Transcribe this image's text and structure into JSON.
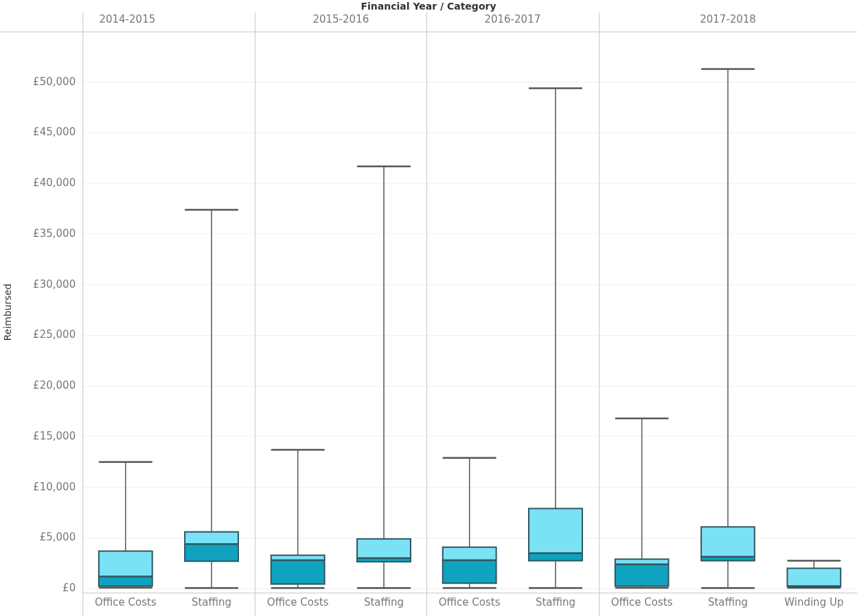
{
  "chart_data": [
    {
      "type": "box",
      "title": "2014-2015",
      "ylabel": "Reimbursed",
      "annotations": [
        "Financial Year / Category"
      ],
      "categories": [
        "Office Costs",
        "Staffing"
      ],
      "color": "#0fa3bf",
      "grid": "y",
      "ylim": [
        -400,
        55000
      ],
      "yticks": [
        {
          "value": 0,
          "label": "£0"
        },
        {
          "value": 5000,
          "label": "£5,000"
        },
        {
          "value": 10000,
          "label": "£10,000"
        },
        {
          "value": 15000,
          "label": "£15,000"
        },
        {
          "value": 20000,
          "label": "£20,000"
        },
        {
          "value": 25000,
          "label": "£25,000"
        },
        {
          "value": 30000,
          "label": "£30,000"
        },
        {
          "value": 35000,
          "label": "£35,000"
        },
        {
          "value": 40000,
          "label": "£40,000"
        },
        {
          "value": 45000,
          "label": "£45,000"
        },
        {
          "value": 50000,
          "label": "£50,000"
        }
      ],
      "boxes": [
        {
          "low": 100,
          "q1": 240,
          "median": 1200,
          "q3": 3700,
          "high": 12500
        },
        {
          "low": 50,
          "q1": 2700,
          "median": 4400,
          "q3": 5600,
          "high": 37400
        }
      ]
    },
    {
      "type": "box",
      "title": "2015-2016",
      "categories": [
        "Office Costs",
        "Staffing"
      ],
      "color": "#0fa3bf",
      "grid": "y",
      "tick_labels": "x",
      "ylim": [
        -400,
        55000
      ],
      "yticks": [
        0,
        5000,
        10000,
        15000,
        20000,
        25000,
        30000,
        35000,
        40000,
        45000,
        50000
      ],
      "boxes": [
        {
          "low": 50,
          "q1": 450,
          "median": 2800,
          "q3": 3300,
          "high": 13700
        },
        {
          "low": 50,
          "q1": 2650,
          "median": 3000,
          "q3": 4900,
          "high": 41700
        }
      ]
    },
    {
      "type": "box",
      "title": "2016-2017",
      "categories": [
        "Office Costs",
        "Staffing"
      ],
      "color": "#0fa3bf",
      "grid": "y",
      "tick_labels": "x",
      "ylim": [
        -400,
        55000
      ],
      "yticks": [
        0,
        5000,
        10000,
        15000,
        20000,
        25000,
        30000,
        35000,
        40000,
        45000,
        50000
      ],
      "boxes": [
        {
          "low": 50,
          "q1": 530,
          "median": 2800,
          "q3": 4100,
          "high": 12900
        },
        {
          "low": 50,
          "q1": 2750,
          "median": 3500,
          "q3": 7900,
          "high": 49400
        }
      ]
    },
    {
      "type": "box",
      "title": "2017-2018",
      "categories": [
        "Office Costs",
        "Staffing",
        "Winding Up"
      ],
      "color": "#0fa3bf",
      "grid": "y",
      "tick_labels": "x",
      "ylim": [
        -400,
        55000
      ],
      "yticks": [
        0,
        5000,
        10000,
        15000,
        20000,
        25000,
        30000,
        35000,
        40000,
        45000,
        50000
      ],
      "boxes": [
        {
          "low": 80,
          "q1": 240,
          "median": 2400,
          "q3": 2900,
          "high": 16800
        },
        {
          "low": 50,
          "q1": 2750,
          "median": 3150,
          "q3": 6100,
          "high": 51300
        },
        {
          "low": 80,
          "q1": 200,
          "median": 240,
          "q3": 2000,
          "high": 2750
        }
      ]
    }
  ]
}
